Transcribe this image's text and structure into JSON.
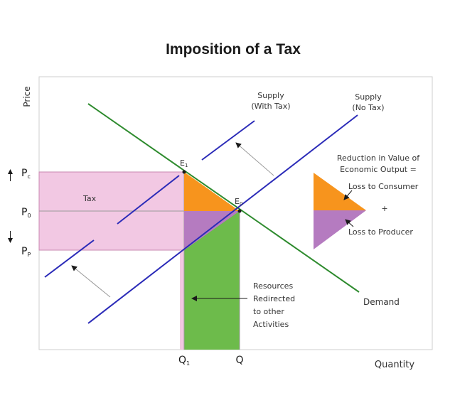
{
  "title": "Imposition of a Tax",
  "axes": {
    "y_label": "Price",
    "x_label": "Quantity"
  },
  "price_labels": {
    "pc": "P",
    "pc_sub": "c",
    "p0": "P",
    "p0_sub": "0",
    "pp": "P",
    "pp_sub": "P"
  },
  "quantity_labels": {
    "q1": "Q",
    "q1_sub": "1",
    "q": "Q"
  },
  "curves": {
    "supply_with_tax": [
      "Supply",
      "(With Tax)"
    ],
    "supply_no_tax": [
      "Supply",
      "(No Tax)"
    ],
    "demand": "Demand"
  },
  "points": {
    "e1": "E",
    "e1_sub": "1",
    "e0": "E",
    "e0_sub": "0"
  },
  "tax_label": "Tax",
  "resources_note": [
    "Resources",
    "Redirected",
    "to other",
    "Activities"
  ],
  "legend": {
    "heading": [
      "Reduction in Value of",
      "Economic Output ="
    ],
    "consumer": "Loss to Consumer",
    "plus": "+",
    "producer": "Loss to Producer"
  },
  "colors": {
    "tax_region": "#f2c8e3",
    "consumer_loss": "#f7941d",
    "producer_loss": "#b57bc0",
    "redirected": "#6dbb4b",
    "supply": "#2b2bb8",
    "demand": "#2e8b2e"
  }
}
